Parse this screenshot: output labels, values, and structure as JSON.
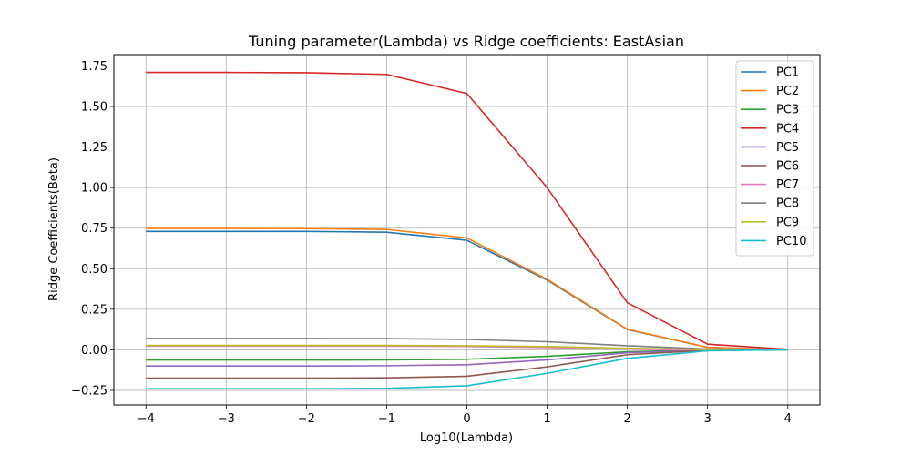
{
  "chart_data": {
    "type": "line",
    "title": "Tuning parameter(Lambda) vs Ridge coefficients: EastAsian",
    "xlabel": "Log10(Lambda)",
    "ylabel": "Ridge Coefficients(Beta)",
    "x": [
      -4,
      -3,
      -2,
      -1,
      0,
      1,
      2,
      3,
      4
    ],
    "xlim": [
      -4.4,
      4.4
    ],
    "ylim": [
      -0.34,
      1.82
    ],
    "xticks": [
      -4,
      -3,
      -2,
      -1,
      0,
      1,
      2,
      3,
      4
    ],
    "xtick_labels": [
      "−4",
      "−3",
      "−2",
      "−1",
      "0",
      "1",
      "2",
      "3",
      "4"
    ],
    "yticks": [
      -0.25,
      0.0,
      0.25,
      0.5,
      0.75,
      1.0,
      1.25,
      1.5,
      1.75
    ],
    "ytick_labels": [
      "−0.25",
      "0.00",
      "0.25",
      "0.50",
      "0.75",
      "1.00",
      "1.25",
      "1.50",
      "1.75"
    ],
    "grid": true,
    "legend_position": "top-right",
    "series": [
      {
        "name": "PC1",
        "color": "#1f77b4",
        "values": [
          0.73,
          0.73,
          0.73,
          0.725,
          0.675,
          0.43,
          0.125,
          0.015,
          0.0
        ]
      },
      {
        "name": "PC2",
        "color": "#ff7f0e",
        "values": [
          0.748,
          0.748,
          0.747,
          0.742,
          0.69,
          0.435,
          0.127,
          0.015,
          0.0
        ]
      },
      {
        "name": "PC3",
        "color": "#2ca02c",
        "values": [
          -0.063,
          -0.063,
          -0.063,
          -0.062,
          -0.058,
          -0.04,
          -0.012,
          -0.001,
          0.0
        ]
      },
      {
        "name": "PC4",
        "color": "#d62728",
        "values": [
          1.71,
          1.71,
          1.708,
          1.698,
          1.58,
          1.0,
          0.29,
          0.035,
          0.003
        ]
      },
      {
        "name": "PC5",
        "color": "#9467bd",
        "values": [
          -0.1,
          -0.1,
          -0.1,
          -0.098,
          -0.092,
          -0.062,
          -0.018,
          -0.002,
          0.0
        ]
      },
      {
        "name": "PC6",
        "color": "#8c564b",
        "values": [
          -0.175,
          -0.175,
          -0.175,
          -0.173,
          -0.163,
          -0.105,
          -0.03,
          -0.003,
          0.0
        ]
      },
      {
        "name": "PC7",
        "color": "#e377c2",
        "values": [
          0.023,
          0.023,
          0.023,
          0.023,
          0.021,
          0.014,
          0.004,
          0.0,
          0.0
        ]
      },
      {
        "name": "PC8",
        "color": "#7f7f7f",
        "values": [
          0.07,
          0.07,
          0.07,
          0.069,
          0.064,
          0.05,
          0.025,
          0.005,
          0.0
        ]
      },
      {
        "name": "PC9",
        "color": "#bcbd22",
        "values": [
          0.027,
          0.027,
          0.027,
          0.027,
          0.025,
          0.02,
          0.01,
          0.002,
          0.0
        ]
      },
      {
        "name": "PC10",
        "color": "#17becf",
        "values": [
          -0.24,
          -0.24,
          -0.24,
          -0.238,
          -0.222,
          -0.145,
          -0.053,
          -0.006,
          0.0
        ]
      }
    ]
  }
}
